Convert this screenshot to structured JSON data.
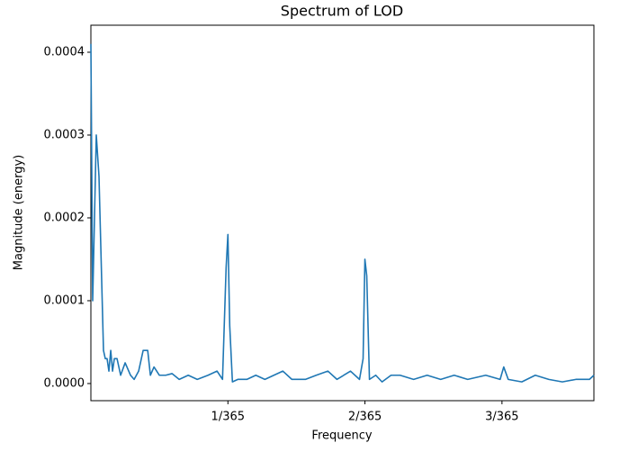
{
  "chart_data": {
    "type": "line",
    "title": "Spectrum of LOD",
    "x_label": "Frequency",
    "y_label": "Magnitude (energy)",
    "x": [
      0,
      3.6e-05,
      0.000108,
      0.000162,
      0.000252,
      0.000288,
      0.000324,
      0.00036,
      0.000397,
      0.000433,
      0.000469,
      0.000523,
      0.000595,
      0.000685,
      0.000793,
      0.000865,
      0.000955,
      0.001045,
      0.001136,
      0.00119,
      0.001262,
      0.00137,
      0.001496,
      0.001622,
      0.001766,
      0.001947,
      0.002127,
      0.002343,
      0.002523,
      0.002632,
      0.002704,
      0.00274,
      0.002776,
      0.00283,
      0.002938,
      0.003118,
      0.003298,
      0.003479,
      0.003659,
      0.003839,
      0.004019,
      0.00429,
      0.004506,
      0.00474,
      0.004921,
      0.005191,
      0.005371,
      0.005443,
      0.005479,
      0.005516,
      0.00557,
      0.005696,
      0.005822,
      0.006002,
      0.006182,
      0.006453,
      0.006723,
      0.006994,
      0.007264,
      0.007534,
      0.007895,
      0.008183,
      0.008255,
      0.008345,
      0.008616,
      0.008886,
      0.009156,
      0.009427,
      0.009697,
      0.009968,
      0.010058
    ],
    "series": [
      {
        "color": "#1f77b4",
        "values": [
          0.00041,
          0.0001,
          0.0003,
          0.00025,
          4e-05,
          3e-05,
          3e-05,
          1.5e-05,
          4e-05,
          1.5e-05,
          3e-05,
          3e-05,
          1e-05,
          2.5e-05,
          1e-05,
          5e-06,
          1.5e-05,
          4e-05,
          4e-05,
          1e-05,
          2e-05,
          1e-05,
          1e-05,
          1.2e-05,
          5e-06,
          1e-05,
          5e-06,
          1e-05,
          1.5e-05,
          5e-06,
          0.00014,
          0.00018,
          7e-05,
          2e-06,
          5e-06,
          5e-06,
          1e-05,
          5e-06,
          1e-05,
          1.5e-05,
          5e-06,
          5e-06,
          1e-05,
          1.5e-05,
          5e-06,
          1.5e-05,
          5e-06,
          3e-05,
          0.00015,
          0.00013,
          5e-06,
          1e-05,
          2e-06,
          1e-05,
          1e-05,
          5e-06,
          1e-05,
          5e-06,
          1e-05,
          5e-06,
          1e-05,
          5e-06,
          2e-05,
          5e-06,
          2e-06,
          1e-05,
          5e-06,
          2e-06,
          5e-06,
          5e-06,
          1e-05
        ]
      }
    ],
    "xlim": [
      0,
      0.010058
    ],
    "xticks": [
      {
        "value": 0.00274,
        "label": "1/365"
      },
      {
        "value": 0.00548,
        "label": "2/365"
      },
      {
        "value": 0.00822,
        "label": "3/365"
      }
    ],
    "ylim": [
      -2.07e-05,
      0.0004326
    ],
    "yticks": [
      {
        "value": 0,
        "label": "0.0000"
      },
      {
        "value": 0.0001,
        "label": "0.0001"
      },
      {
        "value": 0.0002,
        "label": "0.0002"
      },
      {
        "value": 0.0003,
        "label": "0.0003"
      },
      {
        "value": 0.0004,
        "label": "0.0004"
      }
    ]
  }
}
